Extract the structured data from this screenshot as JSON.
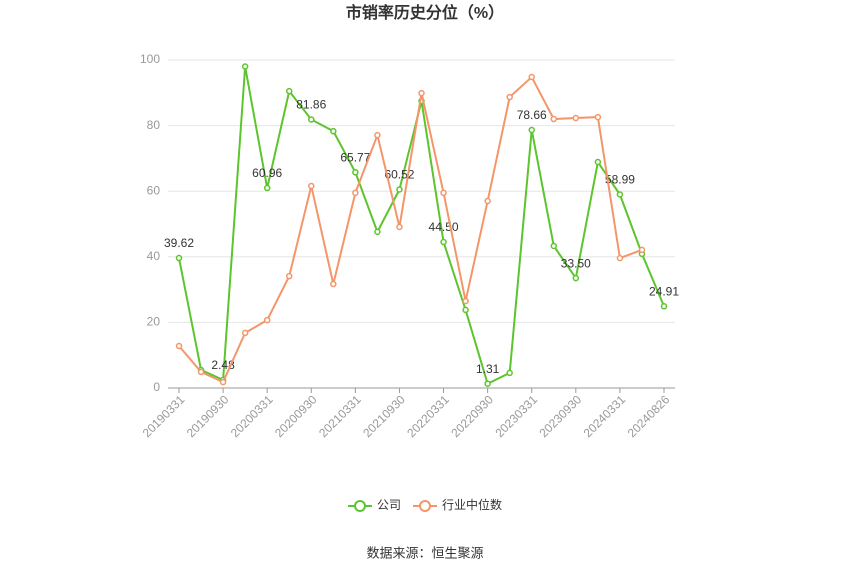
{
  "chart_data": {
    "type": "line",
    "title": "市销率历史分位（%）",
    "source": "数据来源：恒生聚源",
    "categories": [
      "20190331",
      null,
      "20190930",
      null,
      "20200331",
      null,
      "20200930",
      null,
      "20210331",
      null,
      "20210930",
      null,
      "20220331",
      null,
      "20220930",
      null,
      "20230331",
      null,
      "20230930",
      null,
      "20240331",
      null,
      "20240826"
    ],
    "series": [
      {
        "name": "公司",
        "color": "#5cc52d",
        "values": [
          39.62,
          5.5,
          2.48,
          98,
          60.96,
          90.5,
          81.86,
          78.3,
          65.77,
          47.6,
          60.52,
          87.5,
          44.5,
          23.8,
          1.31,
          4.6,
          78.66,
          43.3,
          33.5,
          68.9,
          58.99,
          40.9,
          24.91
        ],
        "value_labels": [
          "39.62",
          null,
          "2.48",
          null,
          "60.96",
          null,
          "81.86",
          null,
          "65.77",
          null,
          "60.52",
          null,
          "44.50",
          null,
          "1.31",
          null,
          "78.66",
          null,
          "33.50",
          null,
          "58.99",
          null,
          "24.91"
        ]
      },
      {
        "name": "行业中位数",
        "color": "#f5956a",
        "values": [
          12.8,
          4.9,
          1.8,
          16.8,
          20.7,
          34.1,
          61.6,
          31.7,
          59.5,
          77.1,
          49.1,
          89.9,
          59.5,
          26.5,
          57.0,
          88.7,
          94.8,
          82.0,
          82.3,
          82.6,
          39.6,
          42.1,
          null
        ]
      }
    ],
    "ylim": [
      0,
      100
    ],
    "yticks": [
      0,
      20,
      40,
      60,
      80,
      100
    ],
    "grid": true
  }
}
